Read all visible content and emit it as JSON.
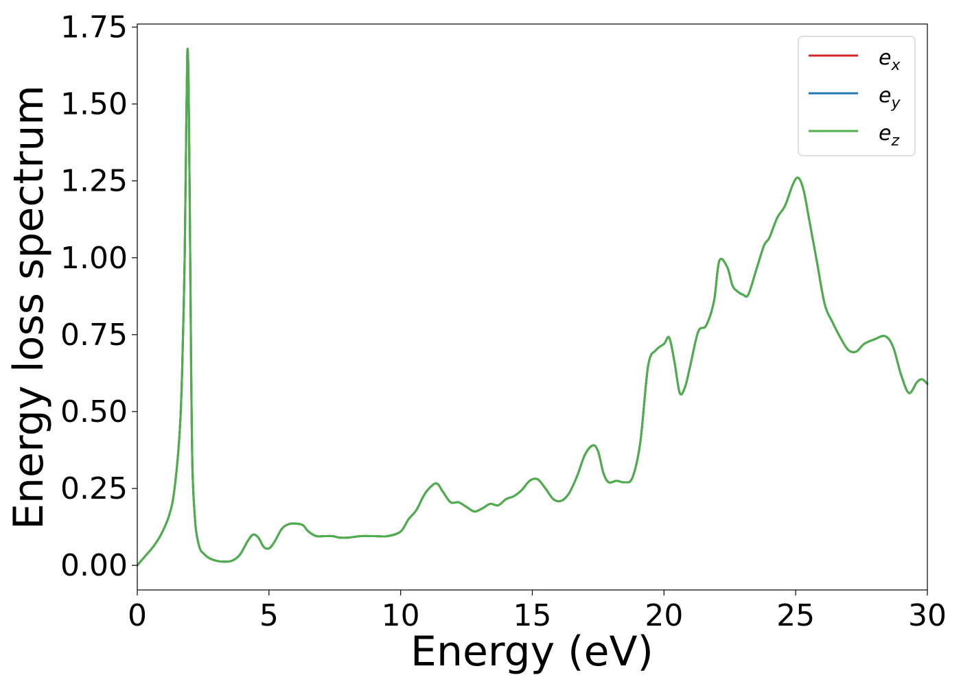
{
  "chart_data": {
    "type": "line",
    "xlabel": "Energy (eV)",
    "ylabel": "Energy loss spectrum",
    "xlim": [
      0,
      30
    ],
    "ylim": [
      -0.08,
      1.76
    ],
    "xticks": [
      0,
      5,
      10,
      15,
      20,
      25,
      30
    ],
    "xtick_labels": [
      "0",
      "5",
      "10",
      "15",
      "20",
      "25",
      "30"
    ],
    "yticks": [
      0.0,
      0.25,
      0.5,
      0.75,
      1.0,
      1.25,
      1.5,
      1.75
    ],
    "ytick_labels": [
      "0.00",
      "0.25",
      "0.50",
      "0.75",
      "1.00",
      "1.25",
      "1.50",
      "1.75"
    ],
    "grid": false,
    "legend_position": "top-right",
    "series": [
      {
        "name": "e",
        "subscript": "x",
        "color": "#d62728"
      },
      {
        "name": "e",
        "subscript": "y",
        "color": "#1f77b4"
      },
      {
        "name": "e",
        "subscript": "z",
        "color": "#4daf4a"
      }
    ],
    "x": [
      0.0,
      0.3,
      0.6,
      0.9,
      1.2,
      1.4,
      1.6,
      1.7,
      1.8,
      1.85,
      1.9,
      1.95,
      2.0,
      2.05,
      2.1,
      2.2,
      2.3,
      2.4,
      2.5,
      2.7,
      3.0,
      3.3,
      3.6,
      3.9,
      4.2,
      4.4,
      4.6,
      4.8,
      5.0,
      5.2,
      5.5,
      5.8,
      6.1,
      6.3,
      6.5,
      6.8,
      7.1,
      7.4,
      7.7,
      8.0,
      8.5,
      9.0,
      9.5,
      10.0,
      10.3,
      10.6,
      10.9,
      11.2,
      11.4,
      11.6,
      11.9,
      12.2,
      12.5,
      12.8,
      13.1,
      13.4,
      13.7,
      14.0,
      14.3,
      14.6,
      14.9,
      15.2,
      15.5,
      15.8,
      16.1,
      16.4,
      16.7,
      17.0,
      17.3,
      17.5,
      17.7,
      17.9,
      18.2,
      18.5,
      18.8,
      19.1,
      19.4,
      19.7,
      20.0,
      20.2,
      20.4,
      20.6,
      20.8,
      21.0,
      21.3,
      21.6,
      21.9,
      22.1,
      22.4,
      22.6,
      22.8,
      23.0,
      23.2,
      23.5,
      23.8,
      24.0,
      24.3,
      24.6,
      24.9,
      25.1,
      25.3,
      25.5,
      25.8,
      26.1,
      26.4,
      26.7,
      27.0,
      27.3,
      27.6,
      28.0,
      28.4,
      28.7,
      29.0,
      29.3,
      29.6,
      29.8,
      30.0
    ],
    "values": [
      [
        0.0,
        0.03,
        0.06,
        0.1,
        0.16,
        0.24,
        0.42,
        0.62,
        1.0,
        1.35,
        1.67,
        1.55,
        1.1,
        0.6,
        0.3,
        0.14,
        0.08,
        0.05,
        0.04,
        0.025,
        0.015,
        0.012,
        0.015,
        0.035,
        0.08,
        0.1,
        0.09,
        0.06,
        0.055,
        0.075,
        0.12,
        0.135,
        0.135,
        0.13,
        0.11,
        0.095,
        0.095,
        0.095,
        0.09,
        0.09,
        0.095,
        0.095,
        0.095,
        0.11,
        0.15,
        0.18,
        0.23,
        0.26,
        0.265,
        0.24,
        0.205,
        0.205,
        0.19,
        0.175,
        0.185,
        0.2,
        0.195,
        0.215,
        0.225,
        0.245,
        0.275,
        0.28,
        0.25,
        0.215,
        0.21,
        0.235,
        0.29,
        0.36,
        0.39,
        0.37,
        0.3,
        0.27,
        0.275,
        0.27,
        0.285,
        0.4,
        0.65,
        0.7,
        0.72,
        0.74,
        0.66,
        0.56,
        0.58,
        0.65,
        0.76,
        0.78,
        0.86,
        0.99,
        0.97,
        0.91,
        0.89,
        0.88,
        0.88,
        0.96,
        1.04,
        1.065,
        1.13,
        1.17,
        1.24,
        1.26,
        1.22,
        1.13,
        0.99,
        0.85,
        0.79,
        0.74,
        0.7,
        0.695,
        0.72,
        0.735,
        0.745,
        0.71,
        0.62,
        0.56,
        0.595,
        0.605,
        0.59
      ],
      [
        0.0,
        0.03,
        0.06,
        0.1,
        0.16,
        0.24,
        0.42,
        0.62,
        1.0,
        1.35,
        1.67,
        1.55,
        1.1,
        0.6,
        0.3,
        0.14,
        0.08,
        0.05,
        0.04,
        0.025,
        0.015,
        0.012,
        0.015,
        0.035,
        0.08,
        0.1,
        0.09,
        0.06,
        0.055,
        0.075,
        0.12,
        0.135,
        0.135,
        0.13,
        0.11,
        0.095,
        0.095,
        0.095,
        0.09,
        0.09,
        0.095,
        0.095,
        0.095,
        0.11,
        0.15,
        0.18,
        0.23,
        0.26,
        0.265,
        0.24,
        0.205,
        0.205,
        0.19,
        0.175,
        0.185,
        0.2,
        0.195,
        0.215,
        0.225,
        0.245,
        0.275,
        0.28,
        0.25,
        0.215,
        0.21,
        0.235,
        0.29,
        0.36,
        0.39,
        0.37,
        0.3,
        0.27,
        0.275,
        0.27,
        0.285,
        0.4,
        0.65,
        0.7,
        0.72,
        0.74,
        0.66,
        0.56,
        0.58,
        0.65,
        0.76,
        0.78,
        0.86,
        0.99,
        0.97,
        0.91,
        0.89,
        0.88,
        0.88,
        0.96,
        1.04,
        1.065,
        1.13,
        1.17,
        1.24,
        1.26,
        1.22,
        1.13,
        0.99,
        0.85,
        0.79,
        0.74,
        0.7,
        0.695,
        0.72,
        0.735,
        0.745,
        0.71,
        0.62,
        0.56,
        0.595,
        0.605,
        0.59
      ],
      [
        0.0,
        0.03,
        0.06,
        0.1,
        0.16,
        0.24,
        0.42,
        0.62,
        1.0,
        1.35,
        1.67,
        1.55,
        1.1,
        0.6,
        0.3,
        0.14,
        0.08,
        0.05,
        0.04,
        0.025,
        0.015,
        0.012,
        0.015,
        0.035,
        0.08,
        0.1,
        0.09,
        0.06,
        0.055,
        0.075,
        0.12,
        0.135,
        0.135,
        0.13,
        0.11,
        0.095,
        0.095,
        0.095,
        0.09,
        0.09,
        0.095,
        0.095,
        0.095,
        0.11,
        0.15,
        0.18,
        0.23,
        0.26,
        0.265,
        0.24,
        0.205,
        0.205,
        0.19,
        0.175,
        0.185,
        0.2,
        0.195,
        0.215,
        0.225,
        0.245,
        0.275,
        0.28,
        0.25,
        0.215,
        0.21,
        0.235,
        0.29,
        0.36,
        0.39,
        0.37,
        0.3,
        0.27,
        0.275,
        0.27,
        0.285,
        0.4,
        0.65,
        0.7,
        0.72,
        0.74,
        0.66,
        0.56,
        0.58,
        0.65,
        0.76,
        0.78,
        0.86,
        0.99,
        0.97,
        0.91,
        0.89,
        0.88,
        0.88,
        0.96,
        1.04,
        1.065,
        1.13,
        1.17,
        1.24,
        1.26,
        1.22,
        1.13,
        0.99,
        0.85,
        0.79,
        0.74,
        0.7,
        0.695,
        0.72,
        0.735,
        0.745,
        0.71,
        0.62,
        0.56,
        0.595,
        0.605,
        0.59
      ]
    ]
  }
}
